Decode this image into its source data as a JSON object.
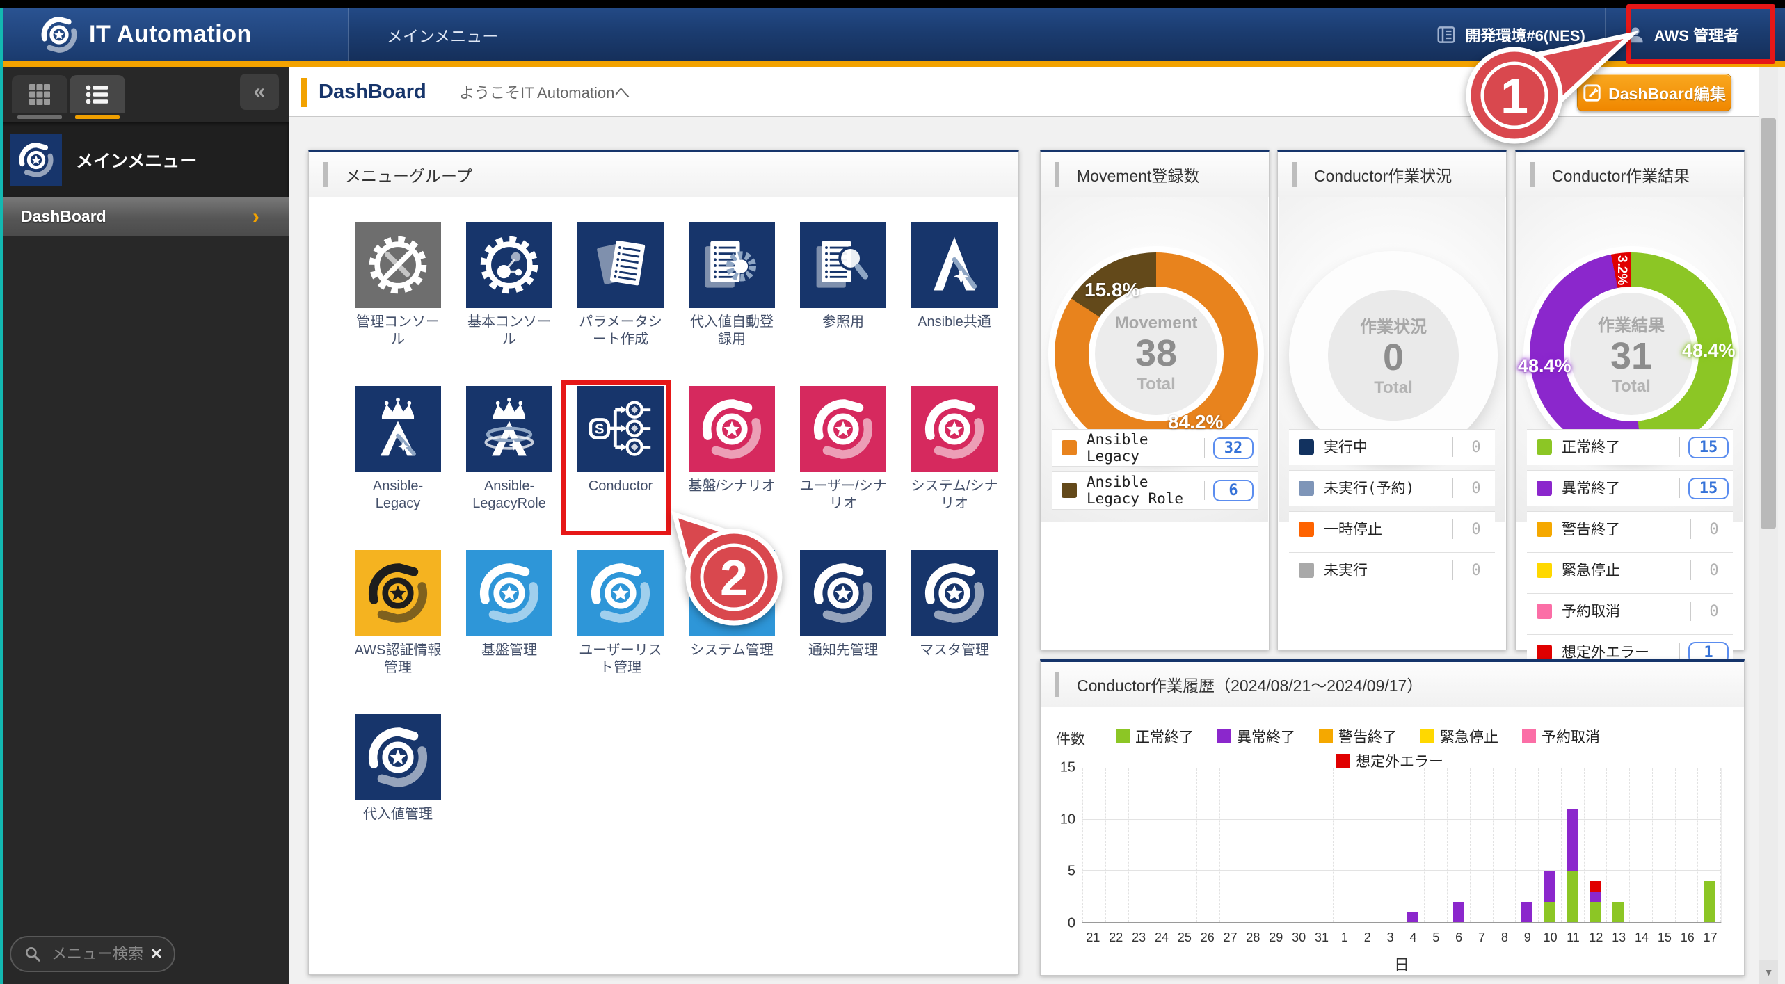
{
  "header": {
    "logo_text": "IT Automation",
    "menu_label": "メインメニュー",
    "environment": "開発環境#6(NES)",
    "user": "AWS 管理者"
  },
  "page": {
    "title": "DashBoard",
    "welcome": "ようこそIT Automationへ",
    "edit_button": "DashBoard編集"
  },
  "sidebar": {
    "main_menu_label": "メインメニュー",
    "dashboard_item": "DashBoard",
    "search_placeholder": "メニュー検索"
  },
  "icons": {
    "collapse": "«",
    "chevron": "›",
    "close": "✕",
    "scroll_down": "▼"
  },
  "menu_group": {
    "title": "メニューグループ",
    "tiles": [
      {
        "label": "管理コンソール",
        "icon": "gear-tools",
        "bg": "#6e6e6e",
        "fg": "#ffffff"
      },
      {
        "label": "基本コンソール",
        "icon": "gear-molecule",
        "bg": "#17356b",
        "fg": "#ffffff"
      },
      {
        "label": "パラメータシート作成",
        "icon": "sheets",
        "bg": "#17356b",
        "fg": "#ffffff"
      },
      {
        "label": "代入値自動登録用",
        "icon": "doc-gear",
        "bg": "#17356b",
        "fg": "#ffffff"
      },
      {
        "label": "参照用",
        "icon": "doc-magnifier",
        "bg": "#17356b",
        "fg": "#ffffff"
      },
      {
        "label": "Ansible共通",
        "icon": "ansible-a",
        "bg": "#17356b",
        "fg": "#ffffff"
      },
      {
        "label": "Ansible-Legacy",
        "icon": "ansible-crown",
        "bg": "#17356b",
        "fg": "#ffffff"
      },
      {
        "label": "Ansible-LegacyRole",
        "icon": "ansible-crown-role",
        "bg": "#17356b",
        "fg": "#ffffff"
      },
      {
        "label": "Conductor",
        "icon": "conductor",
        "bg": "#17356b",
        "fg": "#ffffff"
      },
      {
        "label": "基盤/シナリオ",
        "icon": "ita-swirl",
        "bg": "#d6295e",
        "fg": "#ffffff"
      },
      {
        "label": "ユーザー/シナリオ",
        "icon": "ita-swirl",
        "bg": "#d6295e",
        "fg": "#ffffff"
      },
      {
        "label": "システム/シナリオ",
        "icon": "ita-swirl",
        "bg": "#d6295e",
        "fg": "#ffffff"
      },
      {
        "label": "AWS認証情報管理",
        "icon": "ita-swirl",
        "bg": "#f5b320",
        "fg": "#1d1d1d"
      },
      {
        "label": "基盤管理",
        "icon": "ita-swirl",
        "bg": "#2e96d8",
        "fg": "#ffffff"
      },
      {
        "label": "ユーザーリスト管理",
        "icon": "ita-swirl",
        "bg": "#2e96d8",
        "fg": "#ffffff"
      },
      {
        "label": "システム管理",
        "icon": "ita-swirl",
        "bg": "#2e96d8",
        "fg": "#ffffff"
      },
      {
        "label": "通知先管理",
        "icon": "ita-swirl",
        "bg": "#17356b",
        "fg": "#ffffff"
      },
      {
        "label": "マスタ管理",
        "icon": "ita-swirl",
        "bg": "#17356b",
        "fg": "#ffffff"
      },
      {
        "label": "代入値管理",
        "icon": "ita-swirl",
        "bg": "#17356b",
        "fg": "#ffffff"
      }
    ]
  },
  "panels": {
    "movement": {
      "title": "Movement登録数",
      "center_label": "Movement",
      "total": 38,
      "total_label": "Total",
      "slices": [
        {
          "label": "Ansible Legacy",
          "value": 32,
          "pct": 84.2,
          "pct_label": "84.2%",
          "color": "#e8831d"
        },
        {
          "label": "Ansible Legacy Role",
          "value": 6,
          "pct": 15.8,
          "pct_label": "15.8%",
          "color": "#63491a"
        }
      ]
    },
    "status": {
      "title": "Conductor作業状況",
      "center_label": "作業状況",
      "total": 0,
      "total_label": "Total",
      "rows": [
        {
          "label": "実行中",
          "value": 0,
          "pct": 0,
          "color": "#12325f"
        },
        {
          "label": "未実行(予約)",
          "value": 0,
          "pct": 0,
          "color": "#7e95b8"
        },
        {
          "label": "一時停止",
          "value": 0,
          "pct": 0,
          "color": "#fe6300"
        },
        {
          "label": "未実行",
          "value": 0,
          "pct": 0,
          "color": "#a9a9a9"
        }
      ]
    },
    "result": {
      "title": "Conductor作業結果",
      "center_label": "作業結果",
      "total": 31,
      "total_label": "Total",
      "rows": [
        {
          "label": "正常終了",
          "value": 15,
          "pct": 48.4,
          "pct_label": "48.4%",
          "color": "#8cc625"
        },
        {
          "label": "異常終了",
          "value": 15,
          "pct": 48.4,
          "pct_label": "48.4%",
          "color": "#8b27cc"
        },
        {
          "label": "警告終了",
          "value": 0,
          "pct": 0,
          "color": "#f5a800"
        },
        {
          "label": "緊急停止",
          "value": 0,
          "pct": 0,
          "color": "#ffd800"
        },
        {
          "label": "予約取消",
          "value": 0,
          "pct": 0,
          "color": "#fb6ea6"
        },
        {
          "label": "想定外エラー",
          "value": 1,
          "pct": 3.2,
          "pct_label": "3.2%",
          "color": "#e00000"
        }
      ]
    }
  },
  "history": {
    "title": "Conductor作業履歴（2024/08/21～2024/09/17）",
    "count_label": "件数",
    "xlabel": "日",
    "legend": [
      {
        "label": "正常終了",
        "color": "#8cc625",
        "row": 1
      },
      {
        "label": "異常終了",
        "color": "#8b27cc",
        "row": 1
      },
      {
        "label": "警告終了",
        "color": "#f5a800",
        "row": 1
      },
      {
        "label": "緊急停止",
        "color": "#ffd800",
        "row": 1
      },
      {
        "label": "予約取消",
        "color": "#fb6ea6",
        "row": 1
      },
      {
        "label": "想定外エラー",
        "color": "#e00000",
        "row": 2
      }
    ],
    "chart_data": {
      "type": "bar",
      "stacked": true,
      "x": [
        "21",
        "22",
        "23",
        "24",
        "25",
        "26",
        "27",
        "28",
        "29",
        "30",
        "31",
        "1",
        "2",
        "3",
        "4",
        "5",
        "6",
        "7",
        "8",
        "9",
        "10",
        "11",
        "12",
        "13",
        "14",
        "15",
        "16",
        "17"
      ],
      "series": [
        {
          "name": "正常終了",
          "color": "#8cc625",
          "values": [
            0,
            0,
            0,
            0,
            0,
            0,
            0,
            0,
            0,
            0,
            0,
            0,
            0,
            0,
            0,
            0,
            0,
            0,
            0,
            0,
            2,
            5,
            2,
            2,
            0,
            0,
            0,
            4
          ]
        },
        {
          "name": "異常終了",
          "color": "#8b27cc",
          "values": [
            0,
            0,
            0,
            0,
            0,
            0,
            0,
            0,
            0,
            0,
            0,
            0,
            0,
            0,
            1,
            0,
            2,
            0,
            0,
            2,
            3,
            6,
            1,
            0,
            0,
            0,
            0,
            0
          ]
        },
        {
          "name": "警告終了",
          "color": "#f5a800",
          "values": [
            0,
            0,
            0,
            0,
            0,
            0,
            0,
            0,
            0,
            0,
            0,
            0,
            0,
            0,
            0,
            0,
            0,
            0,
            0,
            0,
            0,
            0,
            0,
            0,
            0,
            0,
            0,
            0
          ]
        },
        {
          "name": "緊急停止",
          "color": "#ffd800",
          "values": [
            0,
            0,
            0,
            0,
            0,
            0,
            0,
            0,
            0,
            0,
            0,
            0,
            0,
            0,
            0,
            0,
            0,
            0,
            0,
            0,
            0,
            0,
            0,
            0,
            0,
            0,
            0,
            0
          ]
        },
        {
          "name": "予約取消",
          "color": "#fb6ea6",
          "values": [
            0,
            0,
            0,
            0,
            0,
            0,
            0,
            0,
            0,
            0,
            0,
            0,
            0,
            0,
            0,
            0,
            0,
            0,
            0,
            0,
            0,
            0,
            0,
            0,
            0,
            0,
            0,
            0
          ]
        },
        {
          "name": "想定外エラー",
          "color": "#e00000",
          "values": [
            0,
            0,
            0,
            0,
            0,
            0,
            0,
            0,
            0,
            0,
            0,
            0,
            0,
            0,
            0,
            0,
            0,
            0,
            0,
            0,
            0,
            0,
            1,
            0,
            0,
            0,
            0,
            0
          ]
        }
      ],
      "ylim": [
        0,
        15
      ],
      "yticks": [
        0,
        5,
        10,
        15
      ],
      "grid": true
    }
  },
  "annotations": {
    "step1": "1",
    "step2": "2"
  }
}
